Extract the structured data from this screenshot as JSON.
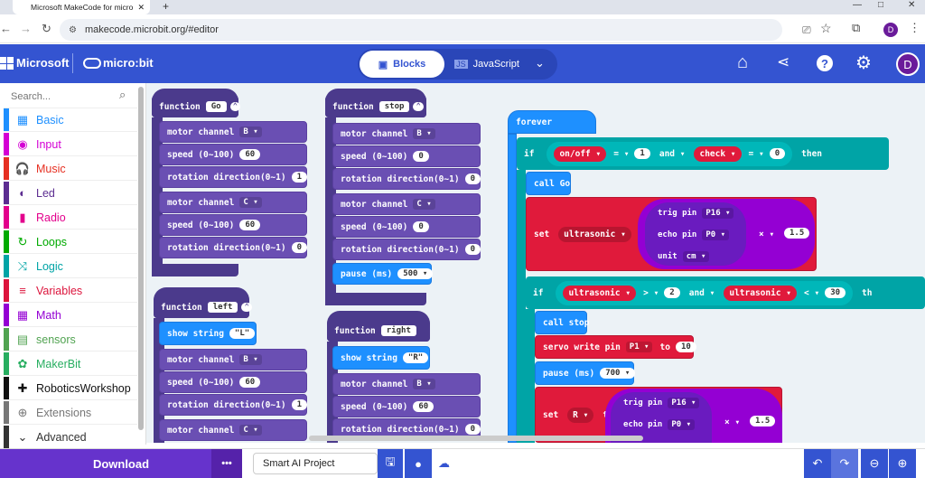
{
  "browser": {
    "tab_title": "Microsoft MakeCode for micro",
    "url": "makecode.microbit.org/#editor",
    "profile_initial": "D",
    "window_controls": [
      "—",
      "□",
      "✕"
    ]
  },
  "header": {
    "brand": "Microsoft",
    "product": "micro:bit",
    "blocks_label": "Blocks",
    "js_label": "JavaScript",
    "user_initial": "D"
  },
  "toolbox": {
    "search_placeholder": "Search...",
    "categories": [
      {
        "label": "Basic",
        "color": "#1e90ff",
        "icon": "▦"
      },
      {
        "label": "Input",
        "color": "#d400d4",
        "icon": "◉"
      },
      {
        "label": "Music",
        "color": "#e63022",
        "icon": "🎧"
      },
      {
        "label": "Led",
        "color": "#5c2d91",
        "icon": "◐"
      },
      {
        "label": "Radio",
        "color": "#e3008c",
        "icon": "▮"
      },
      {
        "label": "Loops",
        "color": "#00aa00",
        "icon": "↻"
      },
      {
        "label": "Logic",
        "color": "#00a4a6",
        "icon": "⤨"
      },
      {
        "label": "Variables",
        "color": "#dc143c",
        "icon": "≡"
      },
      {
        "label": "Math",
        "color": "#9400d3",
        "icon": "▦"
      },
      {
        "label": "sensors",
        "color": "#51a351",
        "icon": "▤"
      },
      {
        "label": "MakerBit",
        "color": "#27ae60",
        "icon": "✿"
      },
      {
        "label": "RoboticsWorkshop",
        "color": "#111111",
        "icon": "✚"
      },
      {
        "label": "Extensions",
        "color": "#777777",
        "icon": "⊕"
      },
      {
        "label": "Advanced",
        "color": "#333333",
        "icon": "⌄"
      }
    ]
  },
  "blocks": {
    "fn_kw": "function",
    "fn_go": "Go",
    "fn_stop": "stop",
    "fn_left": "left",
    "fn_right": "right",
    "motor_channel": "motor channel",
    "speed": "speed (0~100)",
    "rotation": "rotation direction(0~1)",
    "show_string": "show string",
    "pause": "pause (ms)",
    "ch_B": "B",
    "ch_C": "C",
    "v60": "60",
    "v0": "0",
    "v1": "1",
    "v500": "500",
    "v700": "700",
    "str_L": "L",
    "str_R": "R",
    "forever": "forever",
    "if": "if",
    "then": "then",
    "th": "th",
    "onoff": "on/off",
    "eq": "=",
    "and": "and",
    "check": "check",
    "call_go": "call Go",
    "call_stop": "call stop",
    "set": "set",
    "to": "to",
    "ultrasonic": "ultrasonic",
    "trig_pin": "trig pin",
    "echo_pin": "echo pin",
    "unit": "unit",
    "p16": "P16",
    "p0": "P0",
    "cm": "cm",
    "times": "×",
    "v15": "1.5",
    "gt": ">",
    "lt": "<",
    "v2": "2",
    "v30": "30",
    "servo_write": "servo write pin",
    "p1": "P1",
    "v10": "10",
    "var_R": "R"
  },
  "bottom": {
    "download": "Download",
    "more": "•••",
    "project_name": "Smart AI Project"
  }
}
